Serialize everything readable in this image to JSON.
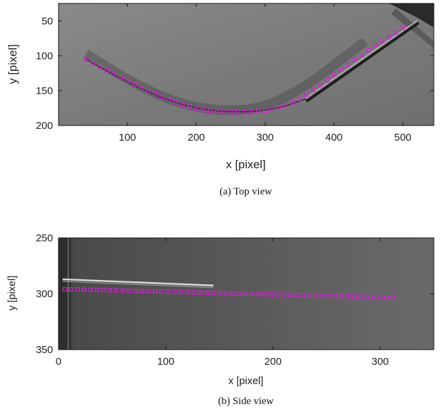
{
  "chart_data": [
    {
      "type": "scatter",
      "panel": "top",
      "xlabel": "x [pixel]",
      "ylabel": "y [pixel]",
      "caption": "(a) Top view",
      "xlim": [
        0,
        545
      ],
      "ylim": [
        200,
        25
      ],
      "xticks": [
        100,
        200,
        300,
        400,
        500
      ],
      "yticks": [
        50,
        100,
        150,
        200
      ],
      "grid": false,
      "background": "grayscale camera image",
      "series": [
        {
          "marker": "square",
          "color": "#e01be0",
          "x": [
            40,
            50,
            60,
            70,
            80,
            90,
            100,
            110,
            120,
            130,
            140,
            150,
            160,
            170,
            180,
            190,
            200,
            210,
            220,
            230,
            240,
            250,
            260,
            270,
            280,
            290,
            300,
            310,
            320,
            330,
            340,
            350,
            360,
            370,
            380,
            390,
            400,
            410,
            420,
            430,
            440,
            450,
            460,
            470,
            480,
            490,
            500
          ],
          "y": [
            106,
            111,
            116,
            121,
            126,
            131,
            136,
            141,
            146,
            151,
            155,
            159,
            163,
            167,
            170,
            173,
            176,
            178,
            179,
            180,
            181,
            181,
            181,
            181,
            181,
            180,
            179,
            177,
            174,
            171,
            167,
            162,
            156,
            149,
            142,
            135,
            127,
            120,
            113,
            106,
            99,
            92,
            85,
            79,
            73,
            67,
            60
          ]
        }
      ]
    },
    {
      "type": "scatter",
      "panel": "side",
      "xlabel": "x [pixel]",
      "ylabel": "y [pixel]",
      "caption": "(b) Side view",
      "xlim": [
        0,
        350
      ],
      "ylim": [
        350,
        250
      ],
      "xticks": [
        0,
        100,
        200,
        300
      ],
      "yticks": [
        250,
        300,
        350
      ],
      "grid": false,
      "background": "grayscale camera image",
      "series": [
        {
          "marker": "square",
          "color": "#e01be0",
          "x": [
            6,
            12,
            18,
            24,
            30,
            36,
            42,
            48,
            54,
            60,
            66,
            72,
            78,
            84,
            90,
            96,
            102,
            108,
            114,
            120,
            126,
            132,
            138,
            144,
            150,
            156,
            162,
            168,
            174,
            180,
            186,
            192,
            198,
            204,
            210,
            216,
            222,
            228,
            234,
            240,
            246,
            252,
            258,
            264,
            270,
            276,
            282,
            288,
            294,
            300,
            306,
            312
          ],
          "y": [
            296.0,
            296.1,
            296.2,
            296.3,
            296.4,
            296.6,
            296.7,
            296.9,
            297.0,
            297.2,
            297.3,
            297.5,
            297.6,
            297.8,
            297.9,
            298.0,
            298.2,
            298.3,
            298.5,
            298.6,
            298.8,
            298.9,
            299.1,
            299.2,
            299.4,
            299.5,
            299.7,
            299.8,
            300.0,
            300.1,
            300.3,
            300.4,
            300.6,
            300.7,
            300.9,
            301.0,
            301.2,
            301.3,
            301.5,
            301.6,
            301.8,
            301.9,
            302.1,
            302.2,
            302.4,
            302.5,
            302.7,
            302.8,
            303.0,
            303.1,
            303.3,
            303.4
          ]
        }
      ]
    }
  ]
}
